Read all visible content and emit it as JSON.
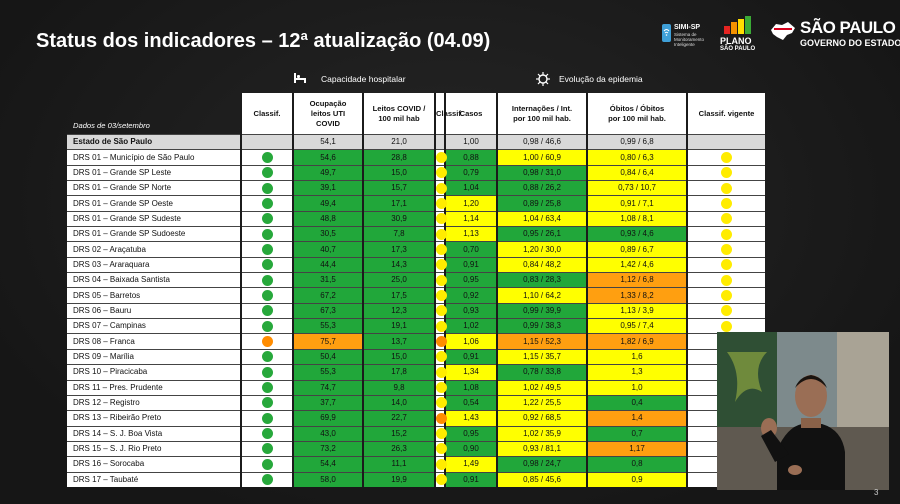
{
  "title": "Status dos indicadores – 12ª atualização (04.09)",
  "logos": {
    "simi_name": "SIMI-SP",
    "simi_sub": "Sistema de Monitoramento Inteligente",
    "plano": "PLANO",
    "plano_sub": "SÃO PAULO",
    "sp_name": "SÃO PAULO",
    "sp_sub": "GOVERNO DO ESTADO"
  },
  "sections": {
    "capacity": "Capacidade hospitalar",
    "epidemic": "Evolução da epidemia"
  },
  "headers": {
    "date": "Dados de 03/setembro",
    "classif1": "Classif.",
    "uti": [
      "Ocupação",
      "leitos UTI",
      "COVID"
    ],
    "leitos": [
      "Leitos COVID /",
      "100 mil hab"
    ],
    "classif2": "Classif.",
    "casos": "Casos",
    "intern": [
      "Internações / Int.",
      "por 100 mil hab."
    ],
    "obitos": [
      "Óbitos / Óbitos",
      "por 100 mil hab."
    ],
    "vigente": "Classif. vigente"
  },
  "colors": {
    "green": "#21a73a",
    "yellow": "#ffff00",
    "orange": "#ff9f10"
  },
  "rows": [
    {
      "name": "Estado de São Paulo",
      "c1": "",
      "uti": "54,1",
      "uti_c": "g",
      "leitos": "21,0",
      "leitos_c": "g",
      "c2": "",
      "casos": "1,00",
      "casos_c": "y",
      "intern": "0,98 / 46,6",
      "intern_c": "y",
      "obitos": "0,99 / 6,8",
      "obitos_c": "y",
      "vig": ""
    },
    {
      "name": "DRS 01 – Município de São Paulo",
      "c1": "g",
      "uti": "54,6",
      "uti_c": "g",
      "leitos": "28,8",
      "leitos_c": "g",
      "c2": "y",
      "casos": "0,88",
      "casos_c": "g",
      "intern": "1,00 / 60,9",
      "intern_c": "y",
      "obitos": "0,80 / 6,3",
      "obitos_c": "y",
      "vig": "y"
    },
    {
      "name": "DRS 01 – Grande SP Leste",
      "c1": "g",
      "uti": "49,7",
      "uti_c": "g",
      "leitos": "15,0",
      "leitos_c": "g",
      "c2": "y",
      "casos": "0,79",
      "casos_c": "g",
      "intern": "0,98 / 31,0",
      "intern_c": "g",
      "obitos": "0,84 / 6,4",
      "obitos_c": "y",
      "vig": "y"
    },
    {
      "name": "DRS 01 – Grande SP Norte",
      "c1": "g",
      "uti": "39,1",
      "uti_c": "g",
      "leitos": "15,7",
      "leitos_c": "g",
      "c2": "y",
      "casos": "1,04",
      "casos_c": "g",
      "intern": "0,88 / 26,2",
      "intern_c": "g",
      "obitos": "0,73 / 10,7",
      "obitos_c": "y",
      "vig": "y"
    },
    {
      "name": "DRS 01 – Grande SP Oeste",
      "c1": "g",
      "uti": "49,4",
      "uti_c": "g",
      "leitos": "17,1",
      "leitos_c": "g",
      "c2": "y",
      "casos": "1,20",
      "casos_c": "y",
      "intern": "0,89 / 25,8",
      "intern_c": "g",
      "obitos": "0,91 / 7,1",
      "obitos_c": "y",
      "vig": "y"
    },
    {
      "name": "DRS 01 – Grande SP Sudeste",
      "c1": "g",
      "uti": "48,8",
      "uti_c": "g",
      "leitos": "30,9",
      "leitos_c": "g",
      "c2": "y",
      "casos": "1,14",
      "casos_c": "y",
      "intern": "1,04 / 63,4",
      "intern_c": "y",
      "obitos": "1,08 / 8,1",
      "obitos_c": "y",
      "vig": "y"
    },
    {
      "name": "DRS 01 – Grande SP Sudoeste",
      "c1": "g",
      "uti": "30,5",
      "uti_c": "g",
      "leitos": "7,8",
      "leitos_c": "g",
      "c2": "y",
      "casos": "1,13",
      "casos_c": "y",
      "intern": "0,95 / 26,1",
      "intern_c": "g",
      "obitos": "0,93 / 4,6",
      "obitos_c": "g",
      "vig": "y"
    },
    {
      "name": "DRS 02 – Araçatuba",
      "c1": "g",
      "uti": "40,7",
      "uti_c": "g",
      "leitos": "17,3",
      "leitos_c": "g",
      "c2": "y",
      "casos": "0,70",
      "casos_c": "g",
      "intern": "1,20 / 30,0",
      "intern_c": "y",
      "obitos": "0,89 / 6,7",
      "obitos_c": "y",
      "vig": "y"
    },
    {
      "name": "DRS 03 – Araraquara",
      "c1": "g",
      "uti": "44,4",
      "uti_c": "g",
      "leitos": "14,3",
      "leitos_c": "g",
      "c2": "y",
      "casos": "0,91",
      "casos_c": "g",
      "intern": "0,84 / 48,2",
      "intern_c": "y",
      "obitos": "1,42 / 4,6",
      "obitos_c": "y",
      "vig": "y"
    },
    {
      "name": "DRS 04 – Baixada Santista",
      "c1": "g",
      "uti": "31,5",
      "uti_c": "g",
      "leitos": "25,0",
      "leitos_c": "g",
      "c2": "y",
      "casos": "0,95",
      "casos_c": "g",
      "intern": "0,83 / 28,3",
      "intern_c": "g",
      "obitos": "1,12 / 6,8",
      "obitos_c": "o",
      "vig": "y"
    },
    {
      "name": "DRS 05 – Barretos",
      "c1": "g",
      "uti": "67,2",
      "uti_c": "g",
      "leitos": "17,5",
      "leitos_c": "g",
      "c2": "y",
      "casos": "0,92",
      "casos_c": "g",
      "intern": "1,10 / 64,2",
      "intern_c": "y",
      "obitos": "1,33 / 8,2",
      "obitos_c": "o",
      "vig": "y"
    },
    {
      "name": "DRS 06 – Bauru",
      "c1": "g",
      "uti": "67,3",
      "uti_c": "g",
      "leitos": "12,3",
      "leitos_c": "g",
      "c2": "y",
      "casos": "0,93",
      "casos_c": "g",
      "intern": "0,99 / 39,9",
      "intern_c": "g",
      "obitos": "1,13 / 3,9",
      "obitos_c": "y",
      "vig": "y"
    },
    {
      "name": "DRS 07 – Campinas",
      "c1": "g",
      "uti": "55,3",
      "uti_c": "g",
      "leitos": "19,1",
      "leitos_c": "g",
      "c2": "y",
      "casos": "1,02",
      "casos_c": "g",
      "intern": "0,99 / 38,3",
      "intern_c": "g",
      "obitos": "0,95 / 7,4",
      "obitos_c": "y",
      "vig": "y"
    },
    {
      "name": "DRS 08 – Franca",
      "c1": "o",
      "uti": "75,7",
      "uti_c": "o",
      "leitos": "13,7",
      "leitos_c": "g",
      "c2": "o",
      "casos": "1,06",
      "casos_c": "y",
      "intern": "1,15 / 52,3",
      "intern_c": "o",
      "obitos": "1,82 / 6,9",
      "obitos_c": "o",
      "vig": "o"
    },
    {
      "name": "DRS 09 – Marília",
      "c1": "g",
      "uti": "50,4",
      "uti_c": "g",
      "leitos": "15,0",
      "leitos_c": "g",
      "c2": "y",
      "casos": "0,91",
      "casos_c": "g",
      "intern": "1,15 / 35,7",
      "intern_c": "y",
      "obitos": "1,6",
      "obitos_c": "y",
      "vig": "y"
    },
    {
      "name": "DRS 10 – Piracicaba",
      "c1": "g",
      "uti": "55,3",
      "uti_c": "g",
      "leitos": "17,8",
      "leitos_c": "g",
      "c2": "y",
      "casos": "1,34",
      "casos_c": "y",
      "intern": "0,78 / 33,8",
      "intern_c": "g",
      "obitos": "1,3",
      "obitos_c": "y",
      "vig": "y"
    },
    {
      "name": "DRS 11 – Pres. Prudente",
      "c1": "g",
      "uti": "74,7",
      "uti_c": "g",
      "leitos": "9,8",
      "leitos_c": "g",
      "c2": "y",
      "casos": "1,08",
      "casos_c": "g",
      "intern": "1,02 / 49,5",
      "intern_c": "y",
      "obitos": "1,0",
      "obitos_c": "y",
      "vig": "y"
    },
    {
      "name": "DRS 12 – Registro",
      "c1": "g",
      "uti": "37,7",
      "uti_c": "g",
      "leitos": "14,0",
      "leitos_c": "g",
      "c2": "y",
      "casos": "0,54",
      "casos_c": "g",
      "intern": "1,22 / 25,5",
      "intern_c": "y",
      "obitos": "0,4",
      "obitos_c": "g",
      "vig": "y"
    },
    {
      "name": "DRS 13 – Ribeirão Preto",
      "c1": "g",
      "uti": "69,9",
      "uti_c": "g",
      "leitos": "22,7",
      "leitos_c": "g",
      "c2": "o",
      "casos": "1,43",
      "casos_c": "y",
      "intern": "0,92 / 68,5",
      "intern_c": "y",
      "obitos": "1,4",
      "obitos_c": "o",
      "vig": "o"
    },
    {
      "name": "DRS 14 – S. J. Boa Vista",
      "c1": "g",
      "uti": "43,0",
      "uti_c": "g",
      "leitos": "15,2",
      "leitos_c": "g",
      "c2": "y",
      "casos": "0,95",
      "casos_c": "g",
      "intern": "1,02 / 35,9",
      "intern_c": "y",
      "obitos": "0,7",
      "obitos_c": "g",
      "vig": "y"
    },
    {
      "name": "DRS 15 – S. J. Rio Preto",
      "c1": "g",
      "uti": "73,2",
      "uti_c": "g",
      "leitos": "26,3",
      "leitos_c": "g",
      "c2": "y",
      "casos": "0,90",
      "casos_c": "g",
      "intern": "0,93 / 81,1",
      "intern_c": "y",
      "obitos": "1,17",
      "obitos_c": "o",
      "vig": "y"
    },
    {
      "name": "DRS 16 – Sorocaba",
      "c1": "g",
      "uti": "54,4",
      "uti_c": "g",
      "leitos": "11,1",
      "leitos_c": "g",
      "c2": "y",
      "casos": "1,49",
      "casos_c": "y",
      "intern": "0,98 / 24,7",
      "intern_c": "g",
      "obitos": "0,8",
      "obitos_c": "g",
      "vig": "y"
    },
    {
      "name": "DRS 17 – Taubaté",
      "c1": "g",
      "uti": "58,0",
      "uti_c": "g",
      "leitos": "19,9",
      "leitos_c": "g",
      "c2": "y",
      "casos": "0,91",
      "casos_c": "g",
      "intern": "0,85 / 45,6",
      "intern_c": "y",
      "obitos": "0,9",
      "obitos_c": "y",
      "vig": "y"
    }
  ],
  "page_number": "3"
}
